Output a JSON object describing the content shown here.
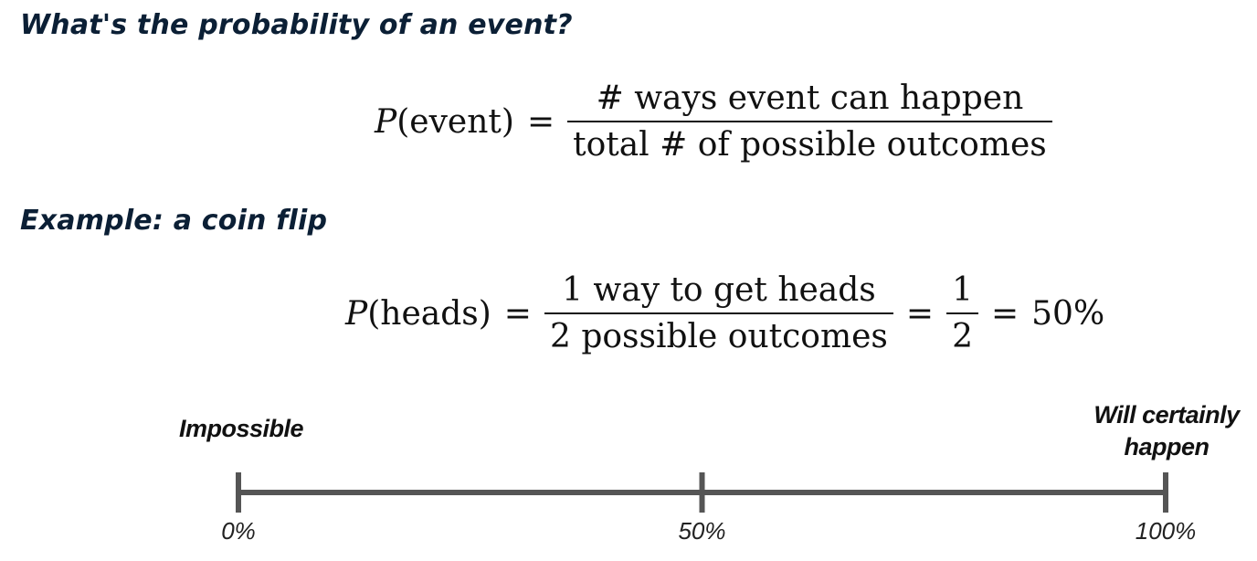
{
  "headings": {
    "question": "What's the probability of an event?",
    "example": "Example: a coin flip"
  },
  "formula_general": {
    "lhs_symbol": "P",
    "lhs_argument": "(event)",
    "equals": "=",
    "numerator": "# ways event can happen",
    "denominator": "total # of possible outcomes"
  },
  "formula_coin": {
    "lhs_symbol": "P",
    "lhs_argument": "(heads)",
    "equals": "=",
    "numerator": "1 way to get heads",
    "denominator": "2 possible outcomes",
    "simplified_numerator": "1",
    "simplified_denominator": "2",
    "result": "50%"
  },
  "scale": {
    "low_label": "Impossible",
    "high_label": "Will certainly happen",
    "ticks": [
      {
        "value": 0,
        "label": "0%"
      },
      {
        "value": 0.5,
        "label": "50%"
      },
      {
        "value": 1,
        "label": "100%"
      }
    ],
    "line_color": "#555555"
  }
}
